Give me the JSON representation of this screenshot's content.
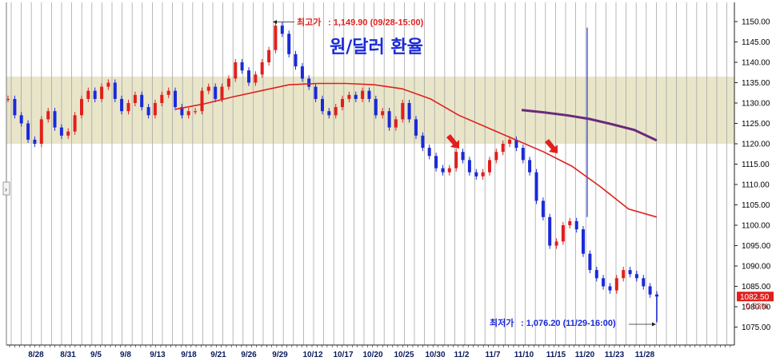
{
  "chart_data": {
    "type": "candlestick",
    "title": "원/달러 환율",
    "ylim": [
      1070,
      1155
    ],
    "y_ticks": [
      1075,
      1080,
      1085,
      1090,
      1095,
      1100,
      1105,
      1110,
      1115,
      1120,
      1125,
      1130,
      1135,
      1140,
      1145,
      1150
    ],
    "y_tick_labels": [
      "1075.00",
      "1080.00",
      "1085.00",
      "1090.00",
      "1095.00",
      "1100.00",
      "1105.00",
      "1110.00",
      "1115.00",
      "1120.00",
      "1125.00",
      "1130.00",
      "1135.00",
      "1140.00",
      "1145.00",
      "1150.00"
    ],
    "x_tick_labels": [
      "8/28",
      "8/31",
      "9/5",
      "9/8",
      "9/13",
      "9/18",
      "9/21",
      "9/26",
      "9/29",
      "10/12",
      "10/17",
      "10/20",
      "10/25",
      "10/30",
      "11/2",
      "11/7",
      "11/10",
      "11/15",
      "11/20",
      "11/23",
      "11/28"
    ],
    "grid": "vertical",
    "highlight_band": [
      1120,
      1136.5
    ],
    "close_series": {
      "name": "price",
      "color_up": "#e0201c",
      "color_down": "#1a2ad8",
      "values": [
        1131,
        1127,
        1125,
        1121,
        1120,
        1126,
        1128,
        1124,
        1122,
        1123,
        1127,
        1131,
        1133,
        1131,
        1134,
        1135,
        1131,
        1128,
        1130,
        1132,
        1129,
        1127,
        1130,
        1132,
        1133,
        1129,
        1127,
        1128,
        1128,
        1133,
        1134,
        1131,
        1134,
        1136,
        1140,
        1138,
        1135,
        1137,
        1140,
        1143,
        1149,
        1147,
        1142,
        1139,
        1136,
        1134,
        1131,
        1128,
        1127,
        1129,
        1131,
        1132,
        1131,
        1133,
        1131,
        1127,
        1128,
        1124,
        1126,
        1130,
        1126,
        1122,
        1119,
        1117,
        1114,
        1113,
        1114,
        1118,
        1116,
        1113,
        1112,
        1113,
        1116,
        1118,
        1120,
        1121,
        1119,
        1116,
        1113,
        1106,
        1102,
        1095,
        1096,
        1100,
        1101,
        1099,
        1093,
        1089,
        1087,
        1085,
        1084,
        1087,
        1089,
        1088,
        1087,
        1085,
        1083,
        1082.5
      ]
    },
    "moving_averages": [
      {
        "color": "#e0201c",
        "values": [
          1128.5,
          1129.8,
          1131.5,
          1133,
          1134.5,
          1134.8,
          1134.8,
          1134.5,
          1133.5,
          1131,
          1127,
          1124,
          1121,
          1118,
          1114.5,
          1109.5,
          1104,
          1102
        ]
      },
      {
        "color": "#6a2a7a",
        "values": [
          1128.3,
          1127.7,
          1127,
          1126.1,
          1124.8,
          1123.4,
          1120.8
        ]
      }
    ],
    "spike": {
      "high": 1148.5,
      "low": 1102
    },
    "annotations": {
      "high": {
        "label": "최고가",
        "text": ": 1,149.90 (09/28-15:00)",
        "value": 1149.9
      },
      "low": {
        "label": "최저가",
        "text": ": 1,076.20 (11/29-16:00)",
        "value": 1076.2
      },
      "last_price": "1082.50",
      "last_change": "0.53%"
    }
  },
  "colors": {
    "band": "#e9e5c9",
    "grid": "#a6a6a6",
    "axis": "#222222"
  }
}
